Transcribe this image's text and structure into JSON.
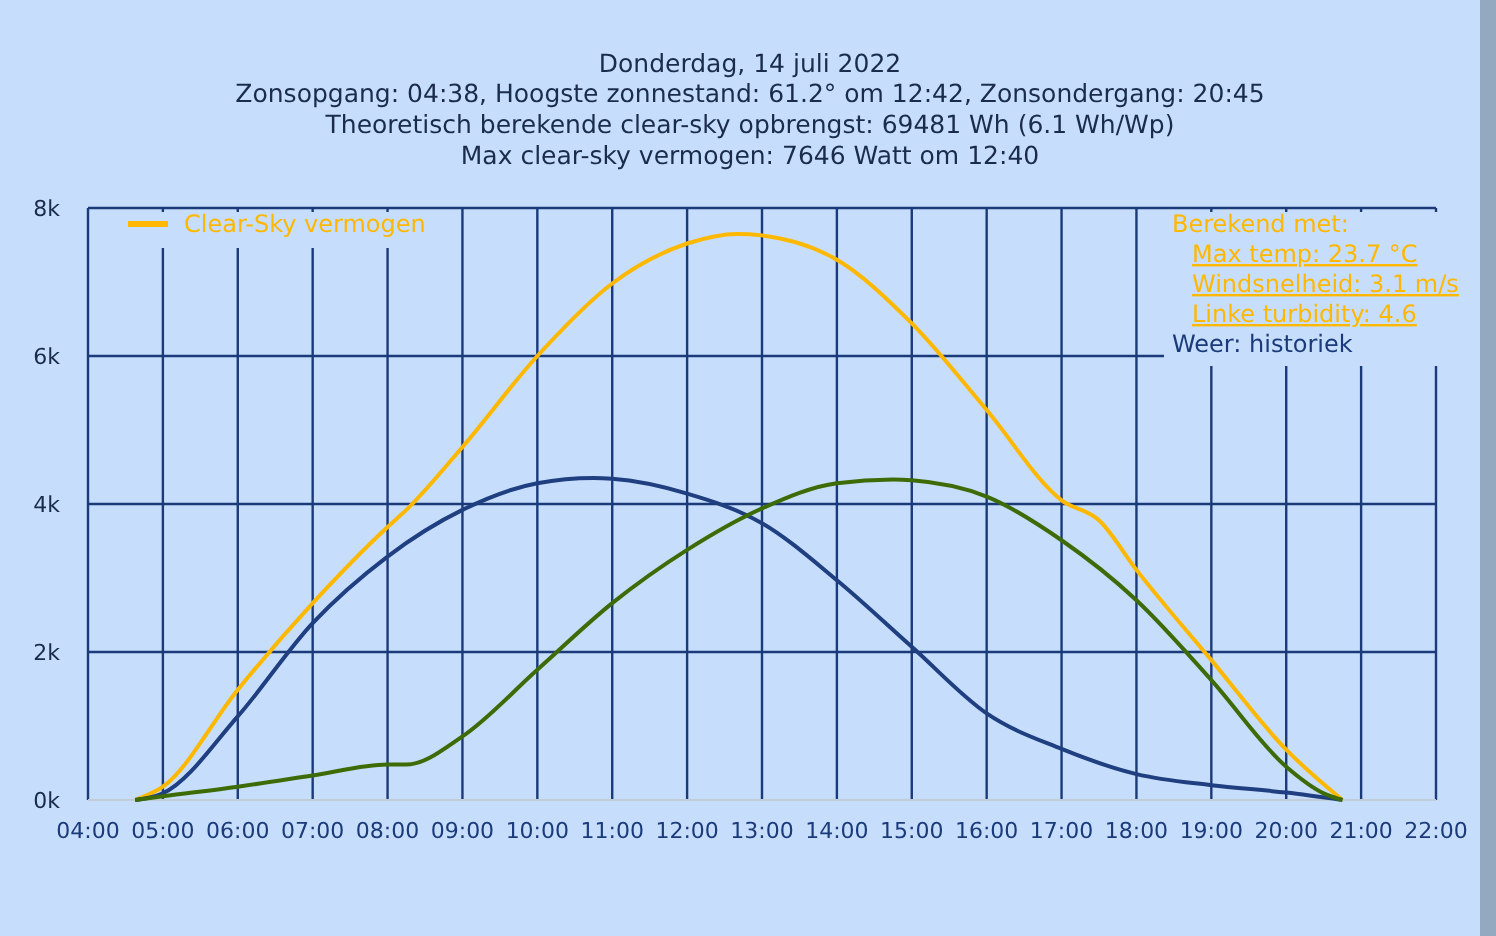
{
  "chart_data": {
    "type": "line",
    "title": "Donderdag, 14 juli 2022",
    "subtitle": "Zonsopgang: 04:38, Hoogste zonnestand: 61.2° om 12:42, Zonsondergang: 20:45\nTheoretisch berekende clear-sky opbrengst: 69481 Wh (6.1 Wh/Wp)\nMax clear-sky vermogen: 7646 Watt om 12:40",
    "annotations": [
      "Berekend met:",
      "Max temp: 23.7 °C",
      "Windsnelheid: 3.1 m/s",
      "Linke turbidity: 4.6",
      "Weer: historiek"
    ],
    "xlim": [
      4,
      22
    ],
    "xticks": [
      {
        "value": 4,
        "label": "04:00"
      },
      {
        "value": 5,
        "label": "05:00"
      },
      {
        "value": 6,
        "label": "06:00"
      },
      {
        "value": 7,
        "label": "07:00"
      },
      {
        "value": 8,
        "label": "08:00"
      },
      {
        "value": 9,
        "label": "09:00"
      },
      {
        "value": 10,
        "label": "10:00"
      },
      {
        "value": 11,
        "label": "11:00"
      },
      {
        "value": 12,
        "label": "12:00"
      },
      {
        "value": 13,
        "label": "13:00"
      },
      {
        "value": 14,
        "label": "14:00"
      },
      {
        "value": 15,
        "label": "15:00"
      },
      {
        "value": 16,
        "label": "16:00"
      },
      {
        "value": 17,
        "label": "17:00"
      },
      {
        "value": 18,
        "label": "18:00"
      },
      {
        "value": 19,
        "label": "19:00"
      },
      {
        "value": 20,
        "label": "20:00"
      },
      {
        "value": 21,
        "label": "21:00"
      },
      {
        "value": 22,
        "label": "22:00"
      }
    ],
    "ylim": [
      0,
      8000
    ],
    "yticks": [
      {
        "value": 0,
        "label": "0k"
      },
      {
        "value": 2000,
        "label": "2k"
      },
      {
        "value": 4000,
        "label": "4k"
      },
      {
        "value": 6000,
        "label": "6k"
      },
      {
        "value": 8000,
        "label": "8k"
      }
    ],
    "grid": true,
    "legend": "top left",
    "marker": "none",
    "line_style": "solid",
    "series": [
      {
        "name": "Clear-Sky vermogen",
        "color": "#ffb800",
        "x": [
          4.63,
          5,
          6,
          7,
          8,
          8.25,
          9,
          10,
          11,
          12,
          12.67,
          13,
          14,
          15,
          16,
          17,
          17.5,
          18,
          19,
          20,
          20.75
        ],
        "values": [
          0,
          180,
          1490,
          2660,
          3690,
          3920,
          4770,
          6000,
          6980,
          7520,
          7650,
          7630,
          7300,
          6440,
          5270,
          4050,
          3780,
          3110,
          1890,
          680,
          0
        ]
      },
      {
        "color": "#1f3f80",
        "x": [
          4.63,
          5,
          6,
          7,
          8,
          9,
          10,
          10.75,
          11,
          12,
          13,
          14,
          15,
          16,
          17,
          18,
          19,
          20,
          20.75
        ],
        "values": [
          0,
          90,
          1130,
          2390,
          3290,
          3920,
          4280,
          4350,
          4340,
          4140,
          3740,
          2970,
          2070,
          1170,
          690,
          350,
          200,
          100,
          0
        ]
      },
      {
        "color": "#3d6b06",
        "x": [
          4.63,
          5,
          6,
          7,
          8,
          8.25,
          9,
          10,
          11,
          12,
          13,
          14,
          14.75,
          15,
          16,
          17,
          18,
          19,
          20,
          20.5,
          20.75
        ],
        "values": [
          0,
          50,
          180,
          330,
          480,
          480,
          860,
          1760,
          2660,
          3380,
          3940,
          4280,
          4330,
          4320,
          4100,
          3510,
          2700,
          1620,
          450,
          90,
          0
        ]
      }
    ]
  }
}
